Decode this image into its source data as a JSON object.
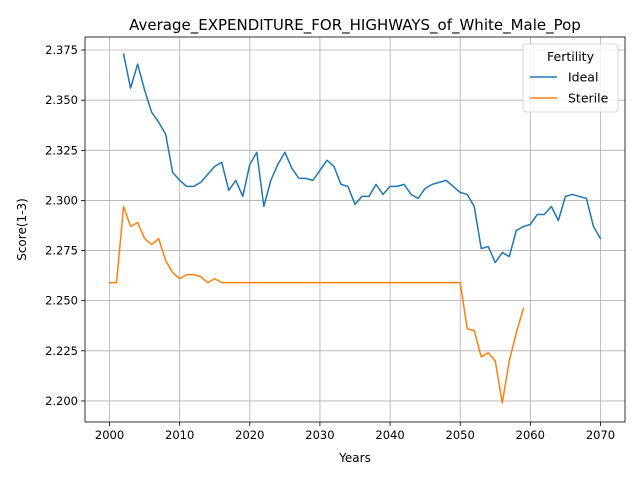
{
  "chart_data": {
    "type": "line",
    "title": "Average_EXPENDITURE_FOR_HIGHWAYS_of_White_Male_Pop",
    "xlabel": "Years",
    "ylabel": "Score(1-3)",
    "xlim": [
      1996.5,
      2073.5
    ],
    "ylim": [
      2.1895,
      2.3815
    ],
    "xticks": [
      2000,
      2010,
      2020,
      2030,
      2040,
      2050,
      2060,
      2070
    ],
    "xtick_labels": [
      "2000",
      "2010",
      "2020",
      "2030",
      "2040",
      "2050",
      "2060",
      "2070"
    ],
    "yticks": [
      2.2,
      2.225,
      2.25,
      2.275,
      2.3,
      2.325,
      2.35,
      2.375
    ],
    "ytick_labels": [
      "2.200",
      "2.225",
      "2.250",
      "2.275",
      "2.300",
      "2.325",
      "2.350",
      "2.375"
    ],
    "grid": true,
    "legend": {
      "title": "Fertility",
      "placement": "top-right"
    },
    "series": [
      {
        "name": "Ideal",
        "color": "#1f77b4",
        "x": [
          2002,
          2003,
          2004,
          2005,
          2006,
          2007,
          2008,
          2009,
          2010,
          2011,
          2012,
          2013,
          2014,
          2015,
          2016,
          2017,
          2018,
          2019,
          2020,
          2021,
          2022,
          2023,
          2024,
          2025,
          2026,
          2027,
          2028,
          2029,
          2030,
          2031,
          2032,
          2033,
          2034,
          2035,
          2036,
          2037,
          2038,
          2039,
          2040,
          2041,
          2042,
          2043,
          2044,
          2045,
          2046,
          2047,
          2048,
          2049,
          2050,
          2051,
          2052,
          2053,
          2054,
          2055,
          2056,
          2057,
          2058,
          2059,
          2060,
          2061,
          2062,
          2063,
          2064,
          2065,
          2066,
          2067,
          2068,
          2069,
          2070
        ],
        "y": [
          2.373,
          2.356,
          2.368,
          2.355,
          2.344,
          2.339,
          2.333,
          2.314,
          2.31,
          2.307,
          2.307,
          2.309,
          2.313,
          2.317,
          2.319,
          2.305,
          2.31,
          2.302,
          2.318,
          2.324,
          2.297,
          2.31,
          2.318,
          2.324,
          2.316,
          2.311,
          2.311,
          2.31,
          2.315,
          2.32,
          2.317,
          2.308,
          2.307,
          2.298,
          2.302,
          2.302,
          2.308,
          2.303,
          2.307,
          2.307,
          2.308,
          2.303,
          2.301,
          2.306,
          2.308,
          2.309,
          2.31,
          2.307,
          2.304,
          2.303,
          2.297,
          2.276,
          2.277,
          2.269,
          2.274,
          2.272,
          2.285,
          2.287,
          2.288,
          2.293,
          2.293,
          2.297,
          2.29,
          2.302,
          2.303,
          2.302,
          2.301,
          2.287,
          2.281
        ]
      },
      {
        "name": "Sterile",
        "color": "#ff7f0e",
        "x": [
          2000,
          2001,
          2002,
          2003,
          2004,
          2005,
          2006,
          2007,
          2008,
          2009,
          2010,
          2011,
          2012,
          2013,
          2014,
          2015,
          2016,
          2017,
          2018,
          2019,
          2020,
          2021,
          2022,
          2023,
          2024,
          2025,
          2026,
          2027,
          2028,
          2029,
          2030,
          2031,
          2032,
          2033,
          2034,
          2035,
          2036,
          2037,
          2038,
          2039,
          2040,
          2041,
          2042,
          2043,
          2044,
          2045,
          2046,
          2047,
          2048,
          2049,
          2050,
          2051,
          2052,
          2053,
          2054,
          2055,
          2056,
          2057,
          2058,
          2059
        ],
        "y": [
          2.259,
          2.259,
          2.297,
          2.287,
          2.289,
          2.281,
          2.278,
          2.281,
          2.27,
          2.264,
          2.261,
          2.263,
          2.263,
          2.262,
          2.259,
          2.261,
          2.259,
          2.259,
          2.259,
          2.259,
          2.259,
          2.259,
          2.259,
          2.259,
          2.259,
          2.259,
          2.259,
          2.259,
          2.259,
          2.259,
          2.259,
          2.259,
          2.259,
          2.259,
          2.259,
          2.259,
          2.259,
          2.259,
          2.259,
          2.259,
          2.259,
          2.259,
          2.259,
          2.259,
          2.259,
          2.259,
          2.259,
          2.259,
          2.259,
          2.259,
          2.259,
          2.236,
          2.235,
          2.222,
          2.224,
          2.22,
          2.199,
          2.22,
          2.234,
          2.246
        ]
      }
    ]
  }
}
